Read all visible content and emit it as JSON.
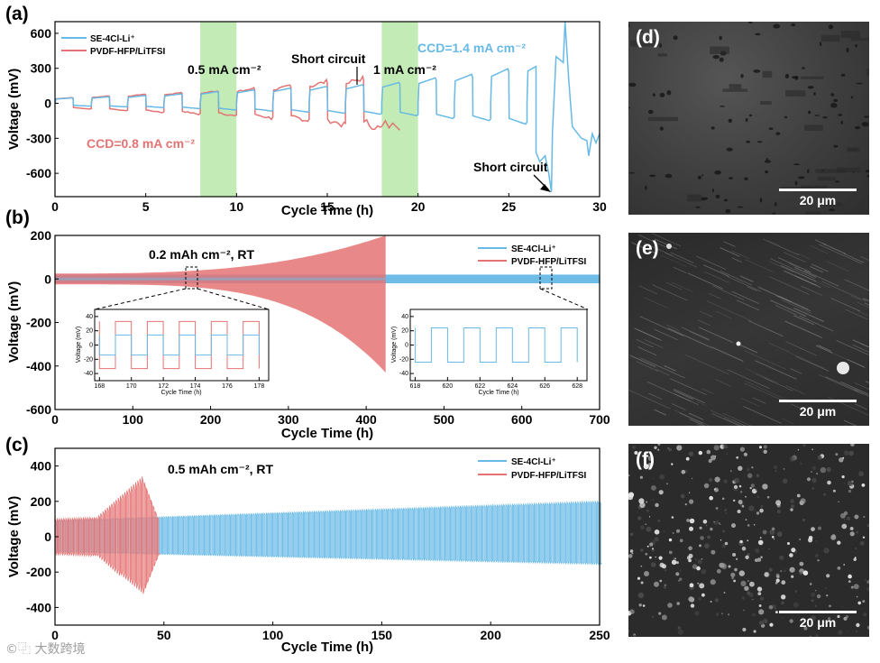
{
  "chart_data": [
    {
      "panel": "(a)",
      "type": "line",
      "title": "",
      "xlabel": "Cycle Time (h)",
      "ylabel": "Voltage (mV)",
      "xlim": [
        0,
        30
      ],
      "ylim": [
        -800,
        700
      ],
      "xticks": [
        "0",
        "5",
        "10",
        "15",
        "20",
        "25",
        "30"
      ],
      "yticks": [
        "600",
        "300",
        "0",
        "-300",
        "-600"
      ],
      "legend": [
        "SE-4Cl-Li⁺",
        "PVDF-HFP/LiTFSI"
      ],
      "series": [
        {
          "name": "SE-4Cl-Li⁺",
          "color": "#67b9e6",
          "step_current_mA_cm2": [
            0.1,
            0.2,
            0.3,
            0.4,
            0.5,
            0.6,
            0.7,
            0.8,
            0.9,
            1.0,
            1.1,
            1.2,
            1.3,
            1.4
          ],
          "plateau_mV": [
            -25,
            -35,
            -45,
            -60,
            -80,
            -95,
            -110,
            -125,
            -140,
            -160,
            -200,
            -230,
            -280,
            -340
          ]
        },
        {
          "name": "PVDF-HFP/LiTFSI",
          "color": "#e57373",
          "step_current_mA_cm2": [
            0.1,
            0.2,
            0.3,
            0.4,
            0.5,
            0.6,
            0.7,
            0.8,
            0.9
          ],
          "plateau_mV": [
            50,
            65,
            80,
            95,
            110,
            130,
            150,
            190,
            220
          ]
        }
      ],
      "annotations": [
        "0.5 mA cm⁻²",
        "Short circuit",
        "1 mA cm⁻²",
        "CCD=1.4 mA cm⁻²",
        "CCD=0.8 mA cm⁻²",
        "Short circuit"
      ],
      "highlight_bands": [
        [
          8,
          10
        ],
        [
          18,
          20
        ]
      ]
    },
    {
      "panel": "(b)",
      "type": "line",
      "title": "",
      "xlabel": "Cycle Time (h)",
      "ylabel": "Voltage (mV)",
      "xlim": [
        0,
        700
      ],
      "ylim": [
        -600,
        200
      ],
      "xticks": [
        "0",
        "100",
        "200",
        "300",
        "400",
        "500",
        "600",
        "700"
      ],
      "yticks": [
        "200",
        "0",
        "-200",
        "-400",
        "-600"
      ],
      "legend": [
        "SE-4Cl-Li⁺",
        "PVDF-HFP/LiTFSI"
      ],
      "annotation": "0.2 mAh cm⁻², RT",
      "series": [
        {
          "name": "SE-4Cl-Li⁺",
          "color": "#67b9e6",
          "x_range": [
            0,
            700
          ],
          "amplitude_mV": [
            18,
            20
          ]
        },
        {
          "name": "PVDF-HFP/LiTFSI",
          "color": "#e57373",
          "x_range": [
            0,
            425
          ],
          "amplitude_mV": [
            25,
            200
          ],
          "failure_h": 425,
          "min_mV": -430
        }
      ],
      "insets": [
        {
          "xticks": [
            "168",
            "170",
            "172",
            "174",
            "176",
            "178"
          ],
          "yticks": [
            "40",
            "20",
            "0",
            "-20",
            "-40"
          ],
          "xlabel": "Cycle Time (h)",
          "ylabel": "Voltage (mV)"
        },
        {
          "xticks": [
            "618",
            "620",
            "622",
            "624",
            "626",
            "628"
          ],
          "yticks": [
            "40",
            "20",
            "0",
            "-20",
            "-40"
          ],
          "xlabel": "Cycle Time (h)",
          "ylabel": "Voltage (mV)"
        }
      ]
    },
    {
      "panel": "(c)",
      "type": "line",
      "title": "",
      "xlabel": "Cycle Time (h)",
      "ylabel": "Voltage (mV)",
      "xlim": [
        0,
        250
      ],
      "ylim": [
        -500,
        500
      ],
      "xticks": [
        "0",
        "50",
        "100",
        "150",
        "200",
        "250"
      ],
      "yticks": [
        "400",
        "200",
        "0",
        "-200",
        "-400"
      ],
      "legend": [
        "SE-4Cl-Li⁺",
        "PVDF-HFP/LiTFSI"
      ],
      "annotation": "0.5 mAh cm⁻², RT",
      "series": [
        {
          "name": "SE-4Cl-Li⁺",
          "color": "#67b9e6",
          "x_range": [
            0,
            250
          ],
          "amplitude_mV": [
            90,
            200
          ]
        },
        {
          "name": "PVDF-HFP/LiTFSI",
          "color": "#e57373",
          "x_range": [
            0,
            47
          ],
          "amplitude_mV": [
            100,
            340
          ]
        }
      ]
    }
  ],
  "sem_panels": [
    {
      "letter": "(d)",
      "scale": "20 μm"
    },
    {
      "letter": "(e)",
      "scale": "20 μm"
    },
    {
      "letter": "(f)",
      "scale": "20 μm"
    }
  ],
  "watermark": "©⿻ 大数跨境",
  "colors": {
    "blue": "#67b9e6",
    "red": "#e57373",
    "band": "#b9e8a8"
  }
}
